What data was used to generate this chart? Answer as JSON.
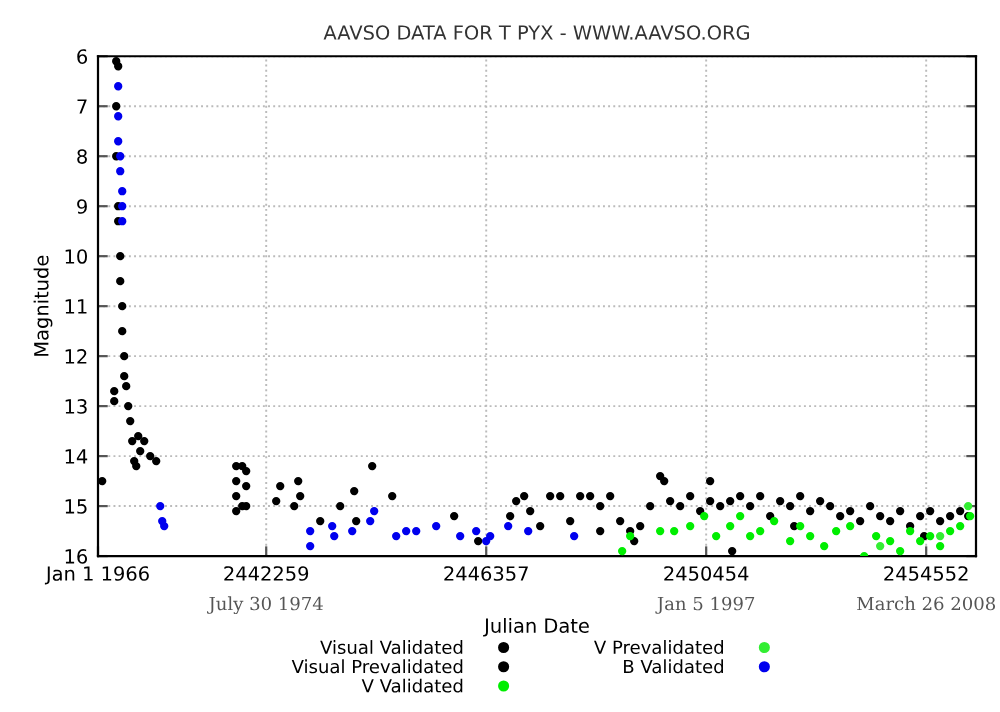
{
  "chart_data": {
    "type": "scatter",
    "title": "AAVSO DATA FOR T PYX - WWW.AAVSO.ORG",
    "xlabel": "Julian Date",
    "ylabel": "Magnitude",
    "xlim": [
      2439126,
      2455480
    ],
    "ylim": [
      16,
      6
    ],
    "xticks": [
      {
        "value": 2439126,
        "label": "Jan 1 1966"
      },
      2442259,
      2446357,
      2450454,
      2454552
    ],
    "x2lim": [
      "1966-01-01",
      "2010-10-09"
    ],
    "x2ticks": [
      {
        "value": "1974-07-30",
        "label": "July 30 1974"
      },
      {
        "value": "1997-01-05",
        "label": "Jan 5 1997"
      },
      {
        "value": "2008-03-26",
        "label": "March 26 2008"
      }
    ],
    "yticks": [
      6,
      7,
      8,
      9,
      10,
      11,
      12,
      13,
      14,
      15,
      16
    ],
    "grid": true,
    "legend": "bottom",
    "marker": "circle",
    "series": [
      {
        "name": "Visual Validated",
        "color": "#000000",
        "x": [
          2439204,
          2439428,
          2439428,
          2439465,
          2439465,
          2439465,
          2439502,
          2439502,
          2439502,
          2439540,
          2439540,
          2439577,
          2439577,
          2439614,
          2439614,
          2439651,
          2439689,
          2439726,
          2439763,
          2439800,
          2439838,
          2439875,
          2439912,
          2439987,
          2440098,
          2440210,
          2445760,
          2446207,
          2446803,
          2446915,
          2447064,
          2447176,
          2447362,
          2447548,
          2447735,
          2447921,
          2448107,
          2448293,
          2448480,
          2448666,
          2448852,
          2449038,
          2449225,
          2449411,
          2449597,
          2449672,
          2449783,
          2449970,
          2450156,
          2450342,
          2450528,
          2450715,
          2450901,
          2451087,
          2451273,
          2451460,
          2451646,
          2451832,
          2452018,
          2452205,
          2452391,
          2452577,
          2452763,
          2452950,
          2453136,
          2453322,
          2453508,
          2453695,
          2453881,
          2454067,
          2454253,
          2454440,
          2454626,
          2454812,
          2454998,
          2455185,
          2455334,
          2448480,
          2449113,
          2452093,
          2454514
        ],
        "values": [
          14.5,
          12.9,
          12.7,
          6.1,
          7,
          8,
          6.2,
          9,
          9.3,
          10,
          10.5,
          11,
          11.5,
          12,
          12.4,
          12.6,
          13,
          13.3,
          13.7,
          14.1,
          14.2,
          13.6,
          13.9,
          13.7,
          14,
          14.1,
          15.2,
          15.7,
          15.2,
          14.9,
          14.8,
          15.1,
          15.4,
          14.8,
          14.8,
          15.3,
          14.8,
          14.8,
          15.0,
          14.8,
          15.3,
          15.5,
          15.4,
          15.0,
          14.4,
          14.5,
          14.9,
          15.0,
          14.8,
          15.1,
          14.9,
          15.0,
          14.9,
          14.8,
          15.0,
          14.8,
          15.2,
          14.9,
          15.0,
          14.8,
          15.1,
          14.9,
          15.0,
          15.2,
          15.1,
          15.3,
          15.0,
          15.2,
          15.3,
          15.1,
          15.4,
          15.2,
          15.1,
          15.3,
          15.2,
          15.1,
          15.2,
          15.5,
          15.7,
          15.4,
          15.6
        ]
      },
      {
        "name": "Visual Prevalidated",
        "color": "#000000",
        "x": [
          2441700,
          2441700,
          2441700,
          2441700,
          2441812,
          2441812,
          2441886,
          2441886,
          2441886,
          2442445,
          2442520,
          2442781,
          2442855,
          2442892,
          2443265,
          2443637,
          2443898,
          2443935,
          2444233,
          2444606,
          2450528,
          2450938
        ],
        "values": [
          14.2,
          14.5,
          14.8,
          15.1,
          14.2,
          15.0,
          14.3,
          14.6,
          15.0,
          14.9,
          14.6,
          15.0,
          14.5,
          14.8,
          15.3,
          15.0,
          14.7,
          15.3,
          14.2,
          14.8,
          14.5,
          15.9
        ]
      },
      {
        "name": "V Validated",
        "color": "#00ee00",
        "x": [
          2448889,
          2449038,
          2449597,
          2449858,
          2450156,
          2450417,
          2450640,
          2450901,
          2451087,
          2451273,
          2451460,
          2451720,
          2452018,
          2452205,
          2452391,
          2452652,
          2452875,
          2453136,
          2453397,
          2453620,
          2453881,
          2454067,
          2454253,
          2454440,
          2454626,
          2454812,
          2454998,
          2455185,
          2455371
        ],
        "values": [
          15.9,
          15.6,
          15.5,
          15.5,
          15.4,
          15.2,
          15.6,
          15.4,
          15.2,
          15.6,
          15.5,
          15.3,
          15.7,
          15.4,
          15.6,
          15.8,
          15.5,
          15.4,
          16.0,
          15.6,
          15.7,
          15.9,
          15.5,
          15.7,
          15.6,
          15.8,
          15.5,
          15.4,
          15.2
        ]
      },
      {
        "name": "V Prevalidated",
        "color": "#33ee33",
        "x": [
          2453695,
          2454812,
          2455334
        ],
        "values": [
          15.8,
          15.6,
          15.0
        ]
      },
      {
        "name": "B Validated",
        "color": "#0000ee",
        "x": [
          2439502,
          2439502,
          2439502,
          2439540,
          2439540,
          2439577,
          2439577,
          2439577,
          2440285,
          2440322,
          2440359,
          2443078,
          2443078,
          2443488,
          2443526,
          2443861,
          2444196,
          2444270,
          2444680,
          2444866,
          2445053,
          2445425,
          2445872,
          2446170,
          2446431,
          2446766,
          2447139,
          2447995,
          2446356
        ],
        "values": [
          6.6,
          7.2,
          7.7,
          8.0,
          8.3,
          8.7,
          9.0,
          9.3,
          15.0,
          15.3,
          15.4,
          15.5,
          15.8,
          15.4,
          15.6,
          15.5,
          15.3,
          15.1,
          15.6,
          15.5,
          15.5,
          15.4,
          15.6,
          15.5,
          15.6,
          15.4,
          15.5,
          15.6,
          15.7
        ]
      }
    ]
  }
}
